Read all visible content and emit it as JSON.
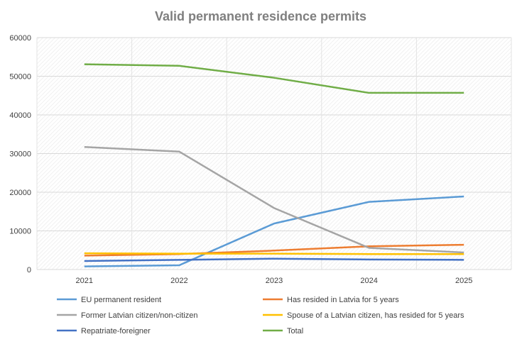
{
  "chart_data": {
    "type": "line",
    "title": "Valid permanent residence permits",
    "xlabel": "",
    "ylabel": "",
    "categories": [
      "2021",
      "2022",
      "2023",
      "2024",
      "2025"
    ],
    "ylim": [
      0,
      60000
    ],
    "yticks": [
      "0",
      "10000",
      "20000",
      "30000",
      "40000",
      "50000",
      "60000"
    ],
    "grid": true,
    "legend_position": "bottom",
    "series": [
      {
        "name": "EU permanent resident",
        "color": "#5b9bd5",
        "values": [
          800,
          1100,
          11900,
          17500,
          18900
        ]
      },
      {
        "name": "Has resided in Latvia for 5 years",
        "color": "#ed7d31",
        "values": [
          3600,
          4000,
          4900,
          6000,
          6400
        ]
      },
      {
        "name": "Former Latvian citizen/non-citizen",
        "color": "#a5a5a5",
        "values": [
          31700,
          30500,
          15900,
          5600,
          4400
        ]
      },
      {
        "name": "Spouse of a Latvian citizen, has resided for 5 years",
        "color": "#ffc000",
        "values": [
          4200,
          4100,
          4100,
          4000,
          4000
        ]
      },
      {
        "name": "Repatriate-foreigner",
        "color": "#4472c4",
        "values": [
          2200,
          2500,
          2800,
          2600,
          2500
        ]
      },
      {
        "name": "Total",
        "color": "#70ad47",
        "values": [
          53100,
          52700,
          49600,
          45700,
          45700
        ]
      }
    ]
  }
}
